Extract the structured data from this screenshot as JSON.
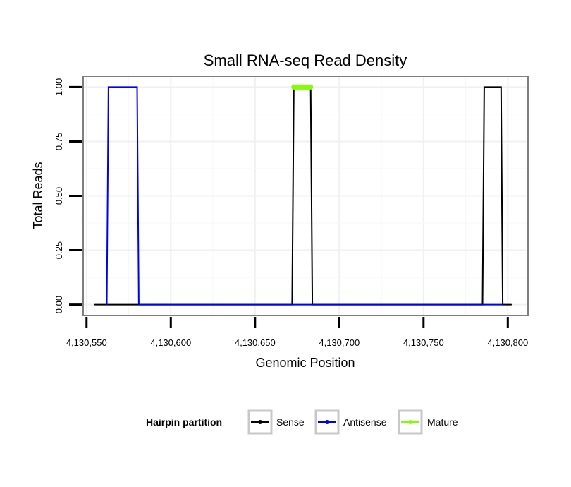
{
  "chart_data": {
    "type": "line",
    "title": "Small RNA-seq Read Density",
    "xlabel": "Genomic Position",
    "ylabel": "Total Reads",
    "xlim": [
      4130548,
      4130812
    ],
    "ylim": [
      -0.05,
      1.05
    ],
    "x_ticks": [
      4130550,
      4130600,
      4130650,
      4130700,
      4130750,
      4130800
    ],
    "x_tick_labels": [
      "4,130,550",
      "4,130,600",
      "4,130,650",
      "4,130,700",
      "4,130,750",
      "4,130,800"
    ],
    "y_ticks": [
      0,
      0.25,
      0.5,
      0.75,
      1
    ],
    "y_tick_labels": [
      "0.00",
      "0.25",
      "0.50",
      "0.75",
      "1.00"
    ],
    "grid": true,
    "legend": {
      "title": "Hairpin partition",
      "position": "bottom",
      "entries": [
        "Sense",
        "Antisense",
        "Mature"
      ]
    },
    "series": [
      {
        "name": "Sense",
        "color": "#000000",
        "x": [
          4130555,
          4130672,
          4130673,
          4130683,
          4130684,
          4130785,
          4130786,
          4130796,
          4130797,
          4130802
        ],
        "y": [
          0,
          0,
          1,
          1,
          0,
          0,
          1,
          1,
          0,
          0
        ]
      },
      {
        "name": "Antisense",
        "color": "#0000ee",
        "x": [
          4130562,
          4130563,
          4130580,
          4130581,
          4130672,
          4130684,
          4130785,
          4130797
        ],
        "y": [
          0,
          1,
          1,
          0,
          0,
          0,
          0,
          0
        ]
      },
      {
        "name": "Mature",
        "color": "#7fff00",
        "x": [
          4130673,
          4130683
        ],
        "y": [
          1,
          1
        ]
      }
    ]
  }
}
